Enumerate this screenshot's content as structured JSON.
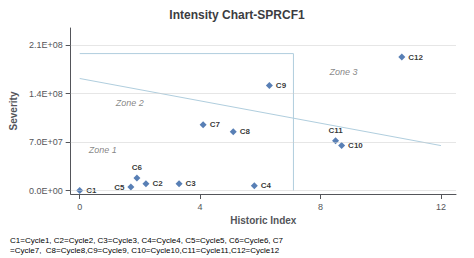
{
  "chart_data": {
    "type": "scatter",
    "title": "Intensity Chart-SPRCF1",
    "xlabel": "Historic Index",
    "ylabel": "Severity",
    "xlim": [
      -0.3,
      12.5
    ],
    "ylim": [
      -5000000.0,
      235000000.0
    ],
    "xticks": [
      0,
      4,
      8,
      12
    ],
    "yticks": [
      {
        "value": 0,
        "label": "0.0E+00"
      },
      {
        "value": 70000000.0,
        "label": "7.0E+07"
      },
      {
        "value": 140000000.0,
        "label": "1.4E+08"
      },
      {
        "value": 210000000.0,
        "label": "2.1E+08"
      }
    ],
    "grid": true,
    "marker": "diamond",
    "color": "#2E5FA3",
    "point_labels": [
      "C1",
      "C2",
      "C3",
      "C4",
      "C5",
      "C6",
      "C7",
      "C8",
      "C9",
      "C10",
      "C11",
      "C12"
    ],
    "x": [
      0,
      2.2,
      3.3,
      5.8,
      1.7,
      1.9,
      4.1,
      5.1,
      6.3,
      8.7,
      8.5,
      10.7
    ],
    "values": [
      0,
      10000000.0,
      10000000.0,
      7000000.0,
      5000000.0,
      18000000.0,
      95000000.0,
      85000000.0,
      152000000.0,
      65000000.0,
      72000000.0,
      193000000.0
    ],
    "lines": [
      {
        "type": "line",
        "color": "#b0cede",
        "x": [
          0,
          12
        ],
        "values": [
          162000000.0,
          65000000.0
        ]
      },
      {
        "type": "line",
        "color": "#b0cede",
        "x": [
          0,
          7.1,
          7.1
        ],
        "values": [
          198000000.0,
          198000000.0,
          0
        ]
      }
    ],
    "annotations": [
      {
        "text": "Zone 1",
        "x": 0.3,
        "y": 58000000.0
      },
      {
        "text": "Zone 2",
        "x": 1.2,
        "y": 127000000.0
      },
      {
        "text": "Zone 3",
        "x": 8.3,
        "y": 172000000.0
      }
    ],
    "caption": [
      "C1=Cycle1, C2=Cycle2, C3=Cycle3, C4=Cycle4, C5=Cycle5, C6=Cycle6, C7",
      "=Cycle7,  C8=Cycle8,C9=Cycle9, C10=Cycle10,C11=Cycle11,C12=Cycle12"
    ]
  }
}
